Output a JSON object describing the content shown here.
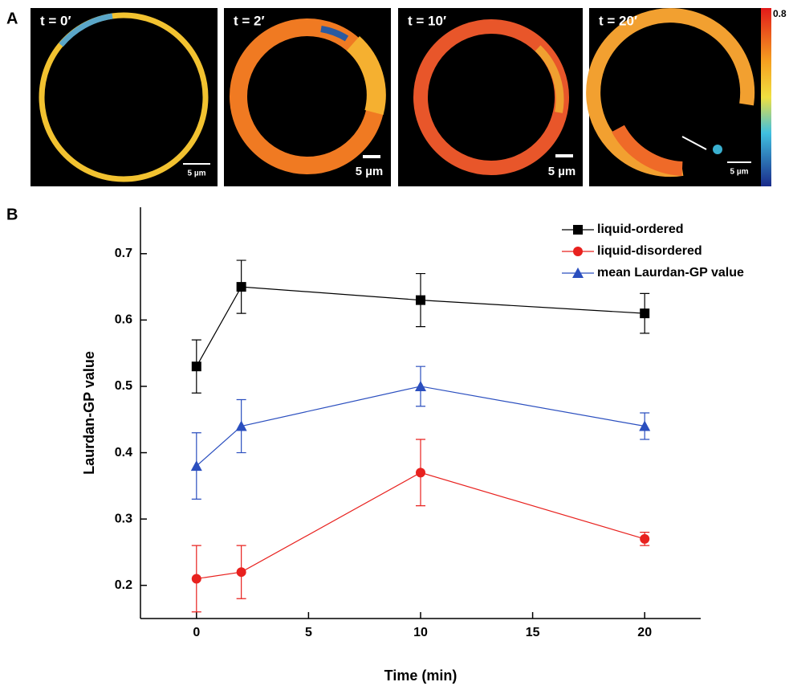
{
  "panel_a": {
    "label": "A",
    "images": [
      {
        "title": "t = 0′",
        "scale_bar": "5 µm"
      },
      {
        "title": "t = 2′",
        "scale_bar": "5 µm"
      },
      {
        "title": "t = 10′",
        "scale_bar": "5 µm"
      },
      {
        "title": "t = 20′",
        "scale_bar": "5 µm"
      }
    ],
    "colorbar_max": 0.8
  },
  "panel_b_label": "B",
  "chart_data": {
    "type": "line",
    "x_label": "Time (min)",
    "y_label": "Laurdan-GP value",
    "x": [
      0,
      2,
      10,
      20
    ],
    "series": [
      {
        "name": "liquid-ordered",
        "color": "#000000",
        "marker": "square",
        "values": [
          0.53,
          0.65,
          0.63,
          0.61
        ],
        "errors": [
          0.04,
          0.04,
          0.04,
          0.03
        ]
      },
      {
        "name": "liquid-disordered",
        "color": "#e8211e",
        "marker": "circle",
        "values": [
          0.21,
          0.22,
          0.37,
          0.27
        ],
        "errors": [
          0.05,
          0.04,
          0.05,
          0.01
        ]
      },
      {
        "name": "mean Laurdan-GP value",
        "color": "#2b4fbf",
        "marker": "triangle",
        "values": [
          0.38,
          0.44,
          0.5,
          0.44
        ],
        "errors": [
          0.05,
          0.04,
          0.03,
          0.02
        ]
      }
    ],
    "xlim": [
      -2.5,
      22.5
    ],
    "xticks": [
      0,
      5,
      10,
      15,
      20
    ],
    "ylim": [
      0.15,
      0.77
    ],
    "yticks": [
      0.2,
      0.3,
      0.4,
      0.5,
      0.6,
      0.7
    ],
    "legend": "upper right"
  }
}
